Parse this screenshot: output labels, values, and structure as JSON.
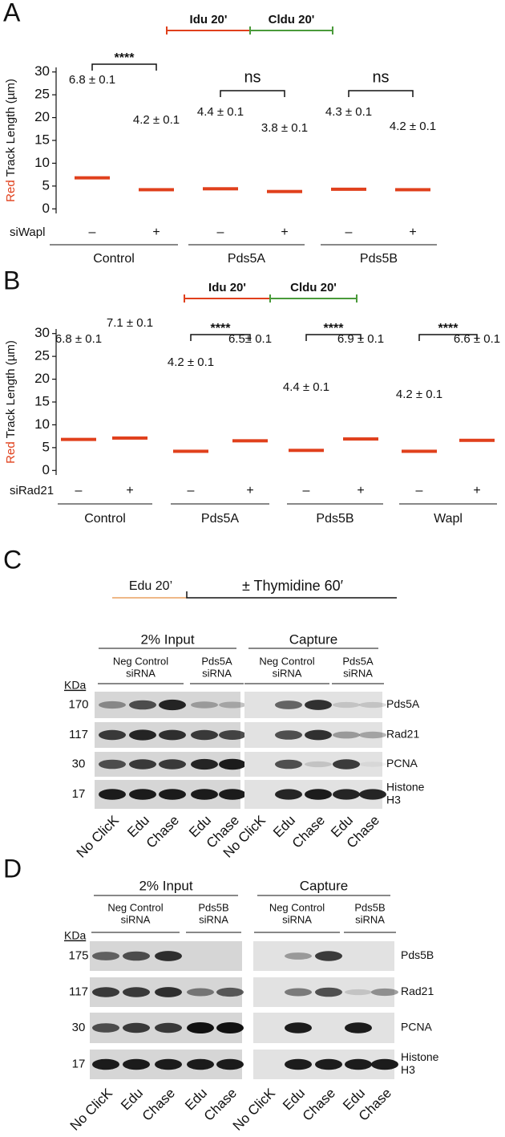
{
  "chart_data": [
    {
      "type": "strip",
      "panel_label": "A",
      "timeline": [
        {
          "text": "Idu 20'",
          "color": "#e0401c"
        },
        {
          "text": "Cldu 20'",
          "color": "#4a9a3a"
        }
      ],
      "ylabel": [
        {
          "text": "Red",
          "color": "#e0401c"
        },
        {
          "text": " Track Length (µm)",
          "color": "#111111"
        }
      ],
      "ylim": [
        -1,
        31
      ],
      "yticks": [
        0,
        5,
        10,
        15,
        20,
        25,
        30
      ],
      "row_label": "siWapl",
      "categories": [
        "–",
        "+",
        "–",
        "+",
        "–",
        "+"
      ],
      "values": [
        6.8,
        4.2,
        4.4,
        3.8,
        4.3,
        4.2
      ],
      "value_labels": [
        "6.8 ± 0.1",
        "4.2 ± 0.1",
        "4.4 ± 0.1",
        "3.8 ± 0.1",
        "4.3 ± 0.1",
        "4.2 ± 0.1"
      ],
      "color": "#e0401c",
      "groups": [
        {
          "name": "Control",
          "significance": "****"
        },
        {
          "name": "Pds5A",
          "significance": "ns"
        },
        {
          "name": "Pds5B",
          "significance": "ns"
        }
      ]
    },
    {
      "type": "strip",
      "panel_label": "B",
      "timeline": [
        {
          "text": "Idu 20'",
          "color": "#e0401c"
        },
        {
          "text": "Cldu 20'",
          "color": "#4a9a3a"
        }
      ],
      "ylabel": [
        {
          "text": "Red",
          "color": "#e0401c"
        },
        {
          "text": " Track Length (µm)",
          "color": "#111111"
        }
      ],
      "ylim": [
        -1,
        31
      ],
      "yticks": [
        0,
        5,
        10,
        15,
        20,
        25,
        30
      ],
      "row_label": "siRad21",
      "categories": [
        "–",
        "+",
        "–",
        "+",
        "–",
        "+",
        "–",
        "+"
      ],
      "values": [
        6.8,
        7.1,
        4.2,
        6.5,
        4.4,
        6.9,
        4.2,
        6.6
      ],
      "value_labels": [
        "6.8 ± 0.1",
        "7.1 ± 0.1",
        "4.2 ± 0.1",
        "6.5± 0.1",
        "4.4 ± 0.1",
        "6.9 ± 0.1",
        "4.2 ± 0.1",
        "6.6 ± 0.1"
      ],
      "color": "#e0401c",
      "groups": [
        {
          "name": "Control",
          "significance": null
        },
        {
          "name": "Pds5A",
          "significance": "****"
        },
        {
          "name": "Pds5B",
          "significance": "****"
        },
        {
          "name": "Wapl",
          "significance": "****"
        }
      ]
    }
  ],
  "blots": [
    {
      "panel_label": "C",
      "timeline": [
        "Edu 20’",
        "± Thymidine 60′"
      ],
      "kda_header": "KDa",
      "sections": [
        {
          "title": "2% Input",
          "groups": [
            [
              "Neg Control",
              "siRNA"
            ],
            [
              "Pds5A",
              "siRNA"
            ]
          ]
        },
        {
          "title": "Capture",
          "groups": [
            [
              "Neg Control",
              "siRNA"
            ],
            [
              "Pds5A",
              "siRNA"
            ]
          ]
        }
      ],
      "rows": [
        {
          "kda": "170",
          "protein": [
            "Pds5A"
          ]
        },
        {
          "kda": "117",
          "protein": [
            "Rad21"
          ]
        },
        {
          "kda": "30",
          "protein": [
            "PCNA"
          ]
        },
        {
          "kda": "17",
          "protein": [
            "Histone",
            "H3"
          ]
        }
      ],
      "lanes": [
        "No ClicK",
        "Edu",
        "Chase",
        "Edu",
        "Chase"
      ]
    },
    {
      "panel_label": "D",
      "kda_header": "KDa",
      "sections": [
        {
          "title": "2% Input",
          "groups": [
            [
              "Neg Control",
              "siRNA"
            ],
            [
              "Pds5B",
              "siRNA"
            ]
          ]
        },
        {
          "title": "Capture",
          "groups": [
            [
              "Neg Control",
              "siRNA"
            ],
            [
              "Pds5B",
              "siRNA"
            ]
          ]
        }
      ],
      "rows": [
        {
          "kda": "175",
          "protein": [
            "Pds5B"
          ]
        },
        {
          "kda": "117",
          "protein": [
            "Rad21"
          ]
        },
        {
          "kda": "30",
          "protein": [
            "PCNA"
          ]
        },
        {
          "kda": "17",
          "protein": [
            "Histone",
            "H3"
          ]
        }
      ],
      "lanes": [
        "No ClicK",
        "Edu",
        "Chase",
        "Edu",
        "Chase"
      ]
    }
  ]
}
